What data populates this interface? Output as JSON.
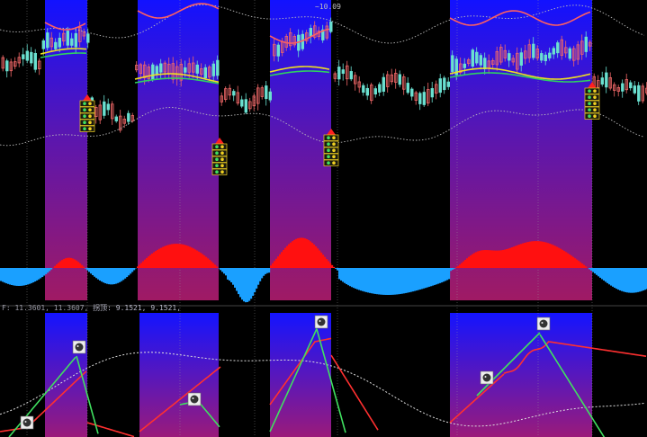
{
  "readout": {
    "indicator_values": "F: 11.3601, 11.3607,",
    "indicator_values_2": "拐顶: 9.1521, 9.1521,"
  },
  "price_tag": "~10.09",
  "colors": {
    "band_top": "#1010ff",
    "band_bottom": "#9a1a6a",
    "candle_up": "#f06868",
    "candle_down": "#6ae0d0",
    "histogram_up": "#ff1010",
    "histogram_down": "#1aa0ff",
    "ma_yellow": "#f0e020",
    "ma_green": "#30d060",
    "bollinger_upper": "#ff6060",
    "osc_red": "#ff3030",
    "osc_green": "#40e060",
    "dotted": "#bbbbbb"
  },
  "chart_data": {
    "type": "candlestick+histogram+oscillator",
    "signal_zones": 4,
    "sell_markers": 4,
    "buy_icons": 7,
    "panels": [
      "price",
      "histogram",
      "oscillator"
    ]
  }
}
